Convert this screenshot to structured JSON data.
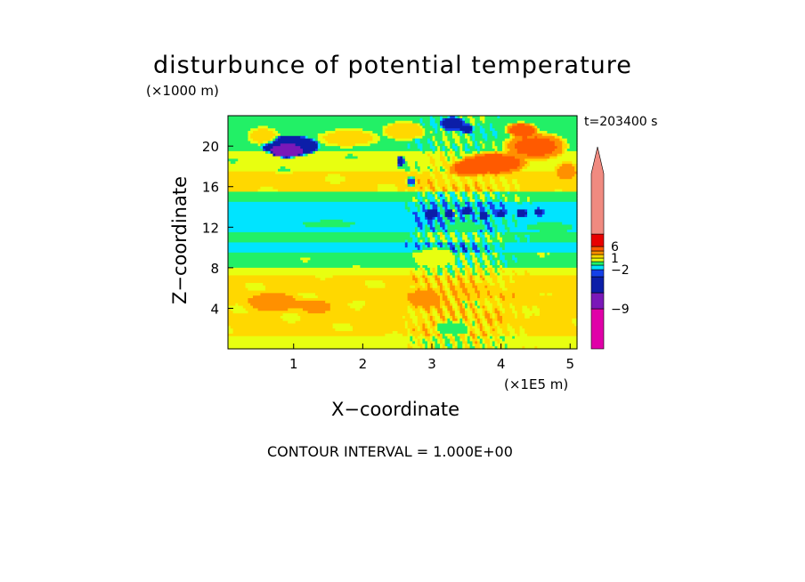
{
  "chart_data": {
    "type": "heatmap",
    "title": "disturbunce of potential temperature",
    "y_unit": "(×1000 m)",
    "x_unit": "(×1E5 m)",
    "xlabel": "X−coordinate",
    "ylabel": "Z−coordinate",
    "time_label": "t=203400 s",
    "footer": "CONTOUR INTERVAL = 1.000E+00",
    "xlim": [
      0.05,
      5.1
    ],
    "ylim": [
      0,
      23
    ],
    "x_ticks": [
      "1",
      "2",
      "3",
      "4",
      "5"
    ],
    "x_tick_values": [
      1,
      2,
      3,
      4,
      5
    ],
    "y_ticks": [
      "4",
      "8",
      "12",
      "16",
      "20"
    ],
    "y_tick_values": [
      4,
      8,
      12,
      16,
      20
    ],
    "colorbar": {
      "labels": [
        "6",
        "1",
        "−2",
        "−9"
      ],
      "label_values": [
        6,
        1,
        -2,
        -9
      ],
      "levels": [
        {
          "color": "#e000a8",
          "min": -13,
          "max": -9
        },
        {
          "color": "#7a18b8",
          "min": -9,
          "max": -6
        },
        {
          "color": "#0c1ea8",
          "min": -6,
          "max": -3
        },
        {
          "color": "#1440e8",
          "min": -3,
          "max": -2
        },
        {
          "color": "#00e4ff",
          "min": -2,
          "max": -1
        },
        {
          "color": "#22f066",
          "min": -1,
          "max": 0
        },
        {
          "color": "#e8ff10",
          "min": 0,
          "max": 1
        },
        {
          "color": "#ffd800",
          "min": 1,
          "max": 2
        },
        {
          "color": "#ff9000",
          "min": 2,
          "max": 3
        },
        {
          "color": "#ff5a00",
          "min": 3,
          "max": 6
        },
        {
          "color": "#e80000",
          "min": 6,
          "max": 7
        },
        {
          "color": "#f08a80",
          "min": 7,
          "max": 13
        }
      ]
    },
    "field_bands": [
      {
        "z_min": 0.0,
        "z_max": 1.2,
        "value": 0.5
      },
      {
        "z_min": 1.2,
        "z_max": 7.2,
        "value": 1.3
      },
      {
        "z_min": 7.2,
        "z_max": 8.0,
        "value": 0.5
      },
      {
        "z_min": 8.0,
        "z_max": 9.4,
        "value": -0.4
      },
      {
        "z_min": 9.4,
        "z_max": 10.6,
        "value": -1.5
      },
      {
        "z_min": 10.6,
        "z_max": 11.6,
        "value": -0.5
      },
      {
        "z_min": 11.6,
        "z_max": 14.6,
        "value": -1.5
      },
      {
        "z_min": 14.6,
        "z_max": 15.4,
        "value": -0.5
      },
      {
        "z_min": 15.4,
        "z_max": 17.4,
        "value": 1.3
      },
      {
        "z_min": 17.4,
        "z_max": 19.4,
        "value": 0.4
      },
      {
        "z_min": 19.4,
        "z_max": 23.0,
        "value": -0.5
      }
    ],
    "field_features": [
      {
        "x": 0.95,
        "z": 20.0,
        "dx": 0.45,
        "dz": 1.1,
        "value": -6
      },
      {
        "x": 0.9,
        "z": 19.5,
        "dx": 0.25,
        "dz": 0.7,
        "value": -9
      },
      {
        "x": 0.55,
        "z": 21.0,
        "dx": 0.25,
        "dz": 1.0,
        "value": 1.5
      },
      {
        "x": 1.8,
        "z": 20.8,
        "dx": 0.5,
        "dz": 1.0,
        "value": 1.5
      },
      {
        "x": 2.6,
        "z": 21.5,
        "dx": 0.35,
        "dz": 1.0,
        "value": 1.8
      },
      {
        "x": 4.5,
        "z": 20.0,
        "dx": 0.5,
        "dz": 1.5,
        "value": 3.5
      },
      {
        "x": 3.9,
        "z": 18.3,
        "dx": 0.55,
        "dz": 1.2,
        "value": 4
      },
      {
        "x": 3.5,
        "z": 17.8,
        "dx": 0.3,
        "dz": 0.9,
        "value": 3.5
      },
      {
        "x": 4.3,
        "z": 21.6,
        "dx": 0.25,
        "dz": 0.8,
        "value": 4
      },
      {
        "x": 4.95,
        "z": 17.5,
        "dx": 0.2,
        "dz": 1.0,
        "value": 2.5
      },
      {
        "x": 3.3,
        "z": 22.2,
        "dx": 0.2,
        "dz": 0.8,
        "value": -4
      },
      {
        "x": 3.5,
        "z": 21.7,
        "dx": 0.12,
        "dz": 0.5,
        "value": -4
      },
      {
        "x": 3.0,
        "z": 13.3,
        "dx": 0.1,
        "dz": 0.6,
        "value": -4
      },
      {
        "x": 3.25,
        "z": 13.3,
        "dx": 0.08,
        "dz": 0.5,
        "value": -4
      },
      {
        "x": 3.5,
        "z": 13.6,
        "dx": 0.08,
        "dz": 0.5,
        "value": -4
      },
      {
        "x": 3.75,
        "z": 13.1,
        "dx": 0.08,
        "dz": 0.45,
        "value": -4
      },
      {
        "x": 4.0,
        "z": 13.3,
        "dx": 0.08,
        "dz": 0.45,
        "value": -4
      },
      {
        "x": 4.3,
        "z": 13.4,
        "dx": 0.08,
        "dz": 0.5,
        "value": -4
      },
      {
        "x": 4.55,
        "z": 13.5,
        "dx": 0.08,
        "dz": 0.4,
        "value": -4
      },
      {
        "x": 2.55,
        "z": 18.5,
        "dx": 0.06,
        "dz": 0.6,
        "value": -4
      },
      {
        "x": 2.7,
        "z": 16.5,
        "dx": 0.08,
        "dz": 0.5,
        "value": -3
      },
      {
        "x": 0.7,
        "z": 4.6,
        "dx": 0.5,
        "dz": 1.2,
        "value": 2.3
      },
      {
        "x": 1.3,
        "z": 4.2,
        "dx": 0.3,
        "dz": 0.8,
        "value": 2.3
      },
      {
        "x": 2.9,
        "z": 5.0,
        "dx": 0.35,
        "dz": 1.2,
        "value": 2.3
      },
      {
        "x": 3.6,
        "z": 5.6,
        "dx": 0.4,
        "dz": 1.0,
        "value": 2.0
      },
      {
        "x": 4.6,
        "z": 6.2,
        "dx": 0.5,
        "dz": 0.8,
        "value": 2.0
      },
      {
        "x": 2.3,
        "z": 3.8,
        "dx": 0.35,
        "dz": 0.9,
        "value": 2.0
      },
      {
        "x": 3.3,
        "z": 2.0,
        "dx": 0.3,
        "dz": 0.8,
        "value": -0.6
      },
      {
        "x": 3.05,
        "z": 9.0,
        "dx": 0.35,
        "dz": 1.2,
        "value": 0.6
      },
      {
        "x": 3.5,
        "z": 12.0,
        "dx": 0.3,
        "dz": 0.6,
        "value": -0.4
      },
      {
        "x": 1.5,
        "z": 12.3,
        "dx": 0.5,
        "dz": 0.4,
        "value": -0.5
      },
      {
        "x": 4.7,
        "z": 12.0,
        "dx": 0.4,
        "dz": 0.5,
        "value": -0.4
      }
    ]
  }
}
